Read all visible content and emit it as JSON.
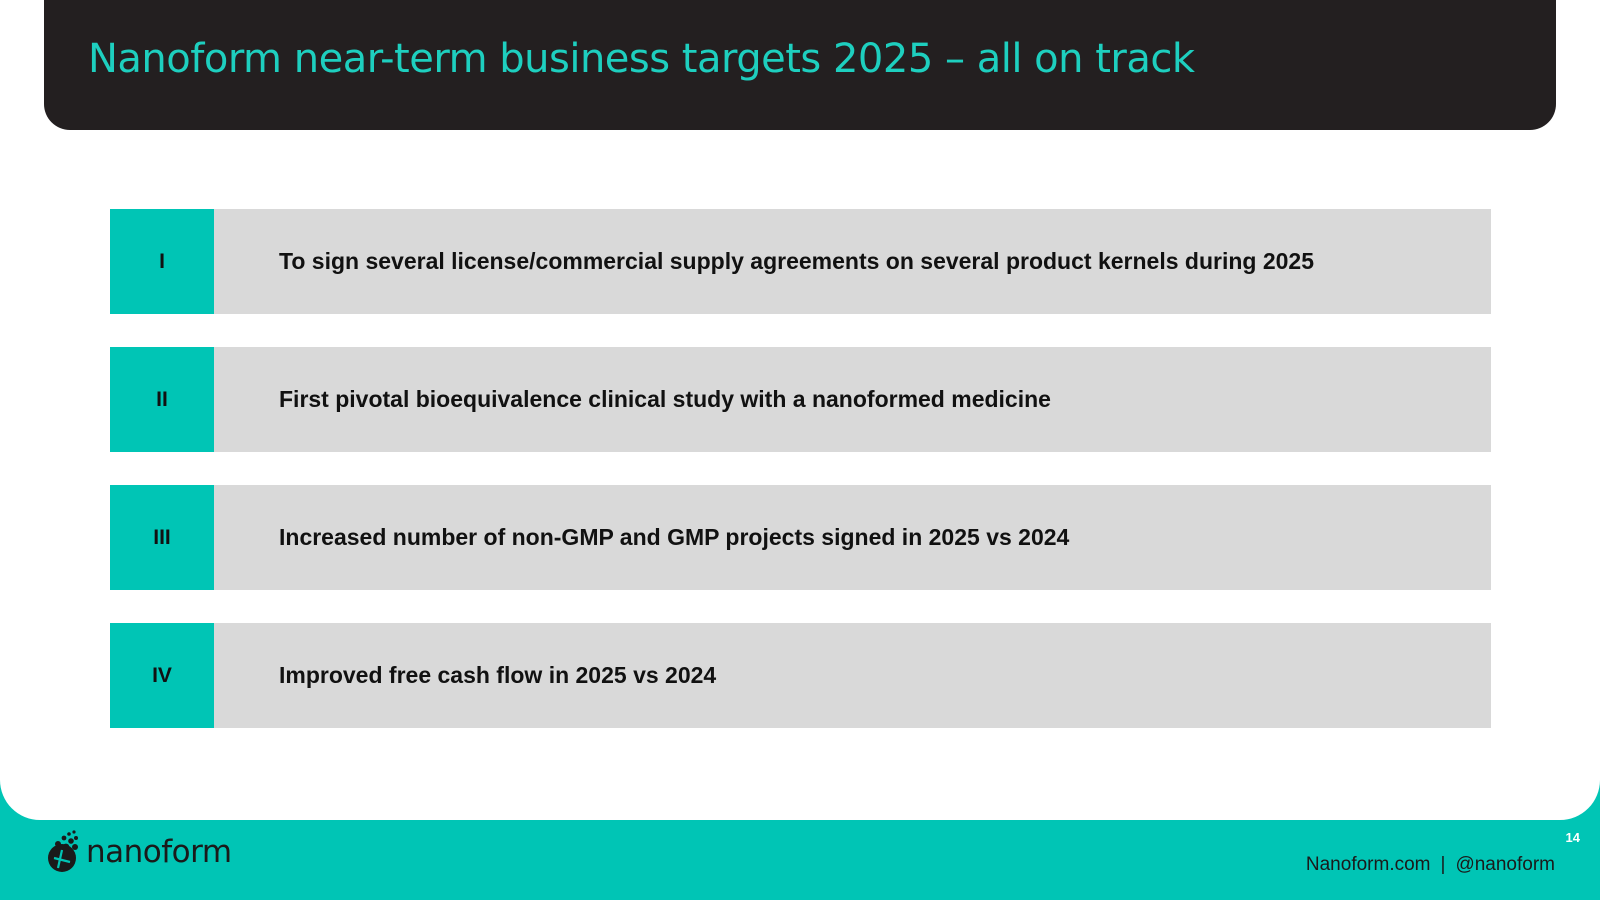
{
  "slide": {
    "title": "Nanoform near-term business targets 2025 – all on track",
    "targets": [
      {
        "numeral": "I",
        "text": "To sign several license/commercial supply agreements on several product kernels during 2025"
      },
      {
        "numeral": "II",
        "text": "First pivotal bioequivalence clinical study with a nanoformed medicine"
      },
      {
        "numeral": "III",
        "text": "Increased number of non-GMP and GMP projects signed in 2025 vs 2024"
      },
      {
        "numeral": "IV",
        "text": "Improved free cash flow in 2025 vs 2024"
      }
    ]
  },
  "footer": {
    "logo_text": "nanoform",
    "logo_icon": "nanoform-particle-logo-icon",
    "page_number": "14",
    "website": "Nanoform.com",
    "separator": "|",
    "handle": "@nanoform"
  },
  "colors": {
    "title_bar": "#231f20",
    "title_text": "#1ecfbf",
    "accent_teal": "#00c5b5",
    "row_background": "#d9d9d9"
  }
}
